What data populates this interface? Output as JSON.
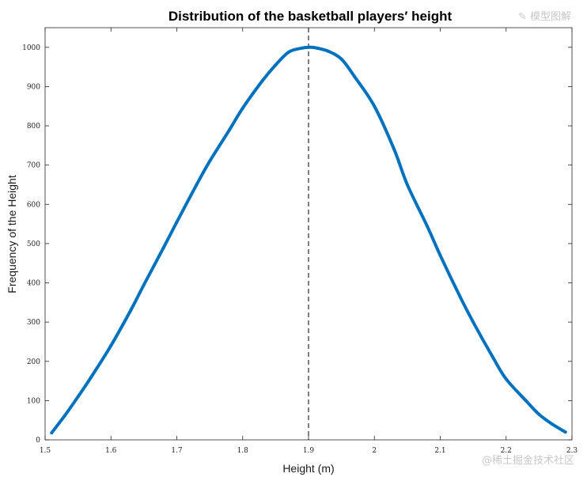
{
  "chart_data": {
    "type": "line",
    "title": "Distribution of the basketball players′ height",
    "xlabel": "Height (m)",
    "ylabel": "Frequency of the Height",
    "xlim": [
      1.5,
      2.3
    ],
    "ylim": [
      0,
      1050
    ],
    "xticks": [
      1.5,
      1.6,
      1.7,
      1.8,
      1.9,
      2.0,
      2.1,
      2.2,
      2.3
    ],
    "xtick_labels": [
      "1.5",
      "1.6",
      "1.7",
      "1.8",
      "1.9",
      "2",
      "2.1",
      "2.2",
      "2.3"
    ],
    "yticks": [
      0,
      100,
      200,
      300,
      400,
      500,
      600,
      700,
      800,
      900,
      1000
    ],
    "ytick_labels": [
      "0",
      "100",
      "200",
      "300",
      "400",
      "500",
      "600",
      "700",
      "800",
      "900",
      "1000"
    ],
    "grid": false,
    "series": [
      {
        "color": "#0072BD",
        "x": [
          1.51,
          1.53,
          1.55,
          1.57,
          1.6,
          1.63,
          1.65,
          1.68,
          1.7,
          1.73,
          1.75,
          1.78,
          1.8,
          1.83,
          1.85,
          1.87,
          1.89,
          1.9,
          1.91,
          1.93,
          1.95,
          1.97,
          2.0,
          2.03,
          2.05,
          2.08,
          2.1,
          2.13,
          2.15,
          2.18,
          2.2,
          2.23,
          2.25,
          2.27,
          2.29
        ],
        "y": [
          18,
          62,
          110,
          160,
          240,
          330,
          395,
          490,
          555,
          650,
          710,
          790,
          845,
          915,
          955,
          988,
          998,
          1000,
          999,
          990,
          970,
          925,
          850,
          740,
          650,
          545,
          470,
          365,
          300,
          210,
          155,
          100,
          65,
          40,
          20
        ]
      }
    ],
    "annotations": [
      {
        "type": "vline",
        "x": 1.9,
        "style": "dashed",
        "color": "#000000"
      }
    ]
  },
  "watermark": {
    "top": "✎ 模型图解",
    "bottom": "@稀土掘金技术社区"
  }
}
